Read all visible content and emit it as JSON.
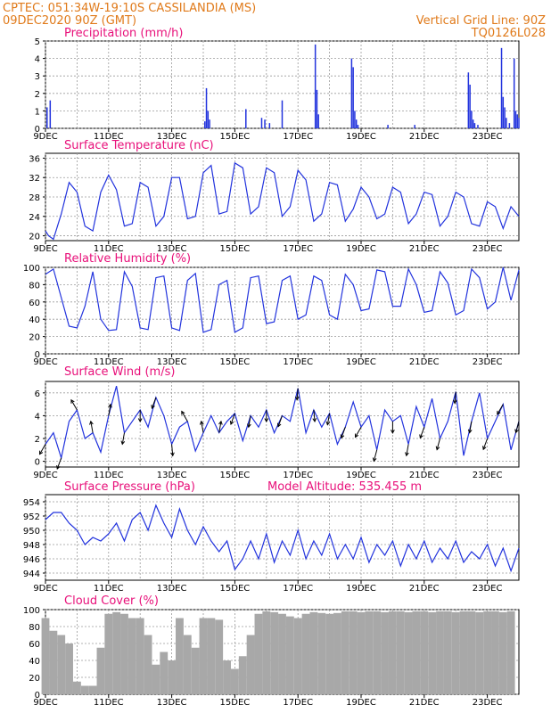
{
  "header": {
    "line1_left": "CPTEC:   051:34W-19:10S   CASSILANDIA (MS)",
    "line2_left": "09DEC2020 90Z (GMT)",
    "line2_right": "Vertical Grid Line: 90Z",
    "line3_right": "TQ0126L028"
  },
  "colors": {
    "header": "#e07a1a",
    "title": "#e8107a",
    "series": "#2233dd",
    "cloud": "#a8a8a8"
  },
  "chart_data": [
    {
      "type": "bar",
      "title": "Precipitation  (mm/h)",
      "xlabel": "",
      "ylabel": "",
      "x_range_days": [
        9,
        24
      ],
      "xticks": [
        "9DEC",
        "11DEC",
        "13DEC",
        "15DEC",
        "17DEC",
        "19DEC",
        "21DEC",
        "23DEC"
      ],
      "ylim": [
        0,
        5
      ],
      "yticks": [
        "0",
        "1",
        "2",
        "3",
        "4",
        "5"
      ],
      "bar_width_days": 0.04,
      "x": [
        9.05,
        9.15,
        14.05,
        14.1,
        14.15,
        14.2,
        15.35,
        15.85,
        15.95,
        16.1,
        16.5,
        17.55,
        17.6,
        17.65,
        18.7,
        18.75,
        18.8,
        18.85,
        18.9,
        19.85,
        20.7,
        22.4,
        22.45,
        22.5,
        22.55,
        22.6,
        22.7,
        23.45,
        23.5,
        23.55,
        23.6,
        23.7,
        23.85,
        23.9,
        23.95,
        24.0
      ],
      "values": [
        1.2,
        1.6,
        0.4,
        2.3,
        1.0,
        0.5,
        1.1,
        0.6,
        0.5,
        0.3,
        1.6,
        4.8,
        2.2,
        0.8,
        4.0,
        3.5,
        1.0,
        0.5,
        0.2,
        0.2,
        0.2,
        3.2,
        2.5,
        1.0,
        0.5,
        0.3,
        0.2,
        4.6,
        1.8,
        1.2,
        0.6,
        0.3,
        4.0,
        1.0,
        0.8,
        0.6
      ]
    },
    {
      "type": "line",
      "title": "Surface Temperature (nC)",
      "xlabel": "",
      "ylabel": "",
      "x_range_days": [
        9,
        24
      ],
      "xticks": [
        "9DEC",
        "11DEC",
        "13DEC",
        "15DEC",
        "17DEC",
        "19DEC",
        "21DEC",
        "23DEC"
      ],
      "ylim": [
        19,
        37
      ],
      "yticks": [
        "20",
        "24",
        "28",
        "32",
        "36"
      ],
      "x": [
        9.0,
        9.1,
        9.25,
        9.5,
        9.75,
        10.0,
        10.25,
        10.5,
        10.75,
        11.0,
        11.25,
        11.5,
        11.75,
        12.0,
        12.25,
        12.5,
        12.75,
        13.0,
        13.25,
        13.5,
        13.75,
        14.0,
        14.25,
        14.5,
        14.75,
        15.0,
        15.25,
        15.5,
        15.75,
        16.0,
        16.25,
        16.5,
        16.75,
        17.0,
        17.25,
        17.5,
        17.75,
        18.0,
        18.25,
        18.5,
        18.75,
        19.0,
        19.25,
        19.5,
        19.75,
        20.0,
        20.25,
        20.5,
        20.75,
        21.0,
        21.25,
        21.5,
        21.75,
        22.0,
        22.25,
        22.5,
        22.75,
        23.0,
        23.25,
        23.5,
        23.75,
        24.0
      ],
      "values": [
        21,
        20,
        19.3,
        24.5,
        31,
        29,
        22,
        21,
        29,
        32.5,
        29.5,
        22,
        22.5,
        31,
        30,
        22,
        24,
        32,
        32,
        23.5,
        24,
        33,
        34.5,
        24.5,
        25,
        35,
        34,
        24.5,
        26,
        34,
        33,
        24,
        26,
        33.5,
        31.5,
        23,
        24.5,
        31,
        30.5,
        23,
        25.5,
        30,
        28,
        23.5,
        24.5,
        30,
        29,
        22.5,
        24.5,
        29,
        28.5,
        22,
        24,
        29,
        28,
        22.5,
        22,
        27,
        26,
        21.5,
        26,
        24
      ]
    },
    {
      "type": "line",
      "title": "Relative Humidity  (%)",
      "xlabel": "",
      "ylabel": "",
      "x_range_days": [
        9,
        24
      ],
      "xticks": [
        "9DEC",
        "11DEC",
        "13DEC",
        "15DEC",
        "17DEC",
        "19DEC",
        "21DEC",
        "23DEC"
      ],
      "ylim": [
        0,
        100
      ],
      "yticks": [
        "0",
        "20",
        "40",
        "60",
        "80",
        "100"
      ],
      "x": [
        9.0,
        9.25,
        9.5,
        9.75,
        10.0,
        10.25,
        10.5,
        10.75,
        11.0,
        11.25,
        11.5,
        11.75,
        12.0,
        12.25,
        12.5,
        12.75,
        13.0,
        13.25,
        13.5,
        13.75,
        14.0,
        14.25,
        14.5,
        14.75,
        15.0,
        15.25,
        15.5,
        15.75,
        16.0,
        16.25,
        16.5,
        16.75,
        17.0,
        17.25,
        17.5,
        17.75,
        18.0,
        18.25,
        18.5,
        18.75,
        19.0,
        19.25,
        19.5,
        19.75,
        20.0,
        20.25,
        20.5,
        20.75,
        21.0,
        21.25,
        21.5,
        21.75,
        22.0,
        22.25,
        22.5,
        22.75,
        23.0,
        23.25,
        23.5,
        23.75,
        24.0
      ],
      "values": [
        92,
        98,
        65,
        32,
        30,
        55,
        95,
        40,
        27,
        28,
        95,
        78,
        30,
        28,
        88,
        90,
        30,
        27,
        85,
        93,
        25,
        28,
        80,
        85,
        25,
        30,
        88,
        90,
        35,
        37,
        85,
        90,
        40,
        45,
        90,
        85,
        45,
        40,
        92,
        80,
        50,
        52,
        97,
        95,
        55,
        55,
        98,
        80,
        48,
        50,
        95,
        82,
        45,
        50,
        98,
        88,
        52,
        60,
        100,
        62,
        97
      ]
    },
    {
      "type": "line",
      "title": "Surface Wind  (m/s)",
      "xlabel": "",
      "ylabel": "",
      "x_range_days": [
        9,
        24
      ],
      "xticks": [
        "9DEC",
        "11DEC",
        "13DEC",
        "15DEC",
        "17DEC",
        "19DEC",
        "21DEC",
        "23DEC"
      ],
      "ylim": [
        -0.5,
        7
      ],
      "yticks": [
        "0",
        "2",
        "4",
        "6"
      ],
      "x": [
        9.0,
        9.25,
        9.5,
        9.75,
        10.0,
        10.25,
        10.5,
        10.75,
        11.0,
        11.25,
        11.5,
        11.75,
        12.0,
        12.25,
        12.5,
        12.75,
        13.0,
        13.25,
        13.5,
        13.75,
        14.0,
        14.25,
        14.5,
        14.75,
        15.0,
        15.25,
        15.5,
        15.75,
        16.0,
        16.25,
        16.5,
        16.75,
        17.0,
        17.25,
        17.5,
        17.75,
        18.0,
        18.25,
        18.5,
        18.75,
        19.0,
        19.25,
        19.5,
        19.75,
        20.0,
        20.25,
        20.5,
        20.75,
        21.0,
        21.25,
        21.5,
        21.75,
        22.0,
        22.25,
        22.5,
        22.75,
        23.0,
        23.25,
        23.5,
        23.75,
        24.0
      ],
      "values": [
        1.5,
        2.5,
        0.3,
        3.5,
        4.5,
        2.0,
        2.5,
        0.8,
        4.0,
        6.6,
        2.5,
        3.5,
        4.5,
        3.0,
        5.6,
        4.0,
        1.5,
        3.0,
        3.5,
        0.9,
        2.5,
        4.0,
        2.5,
        3.5,
        4.2,
        1.8,
        4.0,
        3.0,
        4.5,
        2.5,
        4.0,
        3.5,
        6.4,
        2.5,
        4.5,
        3.0,
        4.2,
        1.5,
        3.0,
        5.2,
        3.0,
        4.0,
        1.0,
        4.5,
        3.5,
        4.0,
        1.5,
        4.8,
        3.0,
        5.5,
        2.0,
        3.5,
        6.1,
        0.5,
        3.5,
        6.0,
        2.0,
        3.5,
        5.0,
        1.0,
        3.5
      ],
      "arrows_dir_deg": [
        210,
        200,
        330,
        350,
        10,
        190,
        180,
        200,
        175,
        330,
        350,
        10,
        200,
        190,
        180,
        200,
        185,
        175,
        190,
        200,
        210,
        195,
        180,
        190,
        200,
        195,
        185,
        190,
        200,
        210,
        195
      ]
    },
    {
      "type": "line",
      "title": "Surface Pressure (hPa)",
      "annotation": "Model Altitude: 535.455  m",
      "xlabel": "",
      "ylabel": "",
      "x_range_days": [
        9,
        24
      ],
      "xticks": [
        "9DEC",
        "11DEC",
        "13DEC",
        "15DEC",
        "17DEC",
        "19DEC",
        "21DEC",
        "23DEC"
      ],
      "ylim": [
        943,
        955
      ],
      "yticks": [
        "944",
        "946",
        "948",
        "950",
        "952",
        "954"
      ],
      "x": [
        9.0,
        9.25,
        9.5,
        9.75,
        10.0,
        10.25,
        10.5,
        10.75,
        11.0,
        11.25,
        11.5,
        11.75,
        12.0,
        12.25,
        12.5,
        12.75,
        13.0,
        13.25,
        13.5,
        13.75,
        14.0,
        14.25,
        14.5,
        14.75,
        15.0,
        15.25,
        15.5,
        15.75,
        16.0,
        16.25,
        16.5,
        16.75,
        17.0,
        17.25,
        17.5,
        17.75,
        18.0,
        18.25,
        18.5,
        18.75,
        19.0,
        19.25,
        19.5,
        19.75,
        20.0,
        20.25,
        20.5,
        20.75,
        21.0,
        21.25,
        21.5,
        21.75,
        22.0,
        22.25,
        22.5,
        22.75,
        23.0,
        23.25,
        23.5,
        23.75,
        24.0
      ],
      "values": [
        951.5,
        952.5,
        952.5,
        951.0,
        950.0,
        948.0,
        949.0,
        948.5,
        949.5,
        951.0,
        948.5,
        951.5,
        952.5,
        950.0,
        953.5,
        951.0,
        949.0,
        953.0,
        950.0,
        948.0,
        950.5,
        948.5,
        947.0,
        948.5,
        944.5,
        946.0,
        948.5,
        946.0,
        949.5,
        945.5,
        948.5,
        946.5,
        950.0,
        946.0,
        948.5,
        946.5,
        949.5,
        946.0,
        948.0,
        946.0,
        949.0,
        945.5,
        948.0,
        946.5,
        948.5,
        945.0,
        948.0,
        946.0,
        948.5,
        945.5,
        947.5,
        946.0,
        948.5,
        945.5,
        947.0,
        946.0,
        948.0,
        945.0,
        947.5,
        944.3,
        947.5
      ]
    },
    {
      "type": "bar",
      "title": "Cloud Cover  (%)",
      "xlabel": "",
      "ylabel": "",
      "x_range_days": [
        9,
        24
      ],
      "xticks": [
        "9DEC",
        "11DEC",
        "13DEC",
        "15DEC",
        "17DEC",
        "19DEC",
        "21DEC",
        "23DEC"
      ],
      "ylim": [
        0,
        100
      ],
      "yticks": [
        "0",
        "20",
        "40",
        "60",
        "80",
        "100"
      ],
      "x": [
        9.0,
        9.25,
        9.5,
        9.75,
        10.0,
        10.25,
        10.5,
        10.75,
        11.0,
        11.25,
        11.5,
        11.75,
        12.0,
        12.25,
        12.5,
        12.75,
        13.0,
        13.25,
        13.5,
        13.75,
        14.0,
        14.25,
        14.5,
        14.75,
        15.0,
        15.25,
        15.5,
        15.75,
        16.0,
        16.25,
        16.5,
        16.75,
        17.0,
        17.25,
        17.5,
        17.75,
        18.0,
        18.25,
        18.5,
        18.75,
        19.0,
        19.25,
        19.5,
        19.75,
        20.0,
        20.25,
        20.5,
        20.75,
        21.0,
        21.25,
        21.5,
        21.75,
        22.0,
        22.25,
        22.5,
        22.75,
        23.0,
        23.25,
        23.5,
        23.75
      ],
      "values": [
        90,
        75,
        70,
        60,
        15,
        10,
        10,
        55,
        95,
        97,
        95,
        90,
        90,
        70,
        35,
        50,
        40,
        90,
        70,
        55,
        90,
        90,
        88,
        40,
        30,
        45,
        70,
        95,
        98,
        97,
        95,
        92,
        90,
        95,
        97,
        96,
        95,
        96,
        98,
        98,
        97,
        98,
        98,
        97,
        98,
        98,
        97,
        98,
        98,
        97,
        98,
        98,
        97,
        98,
        98,
        97,
        98,
        98,
        97,
        98
      ],
      "bar_width_days": 0.25
    }
  ]
}
